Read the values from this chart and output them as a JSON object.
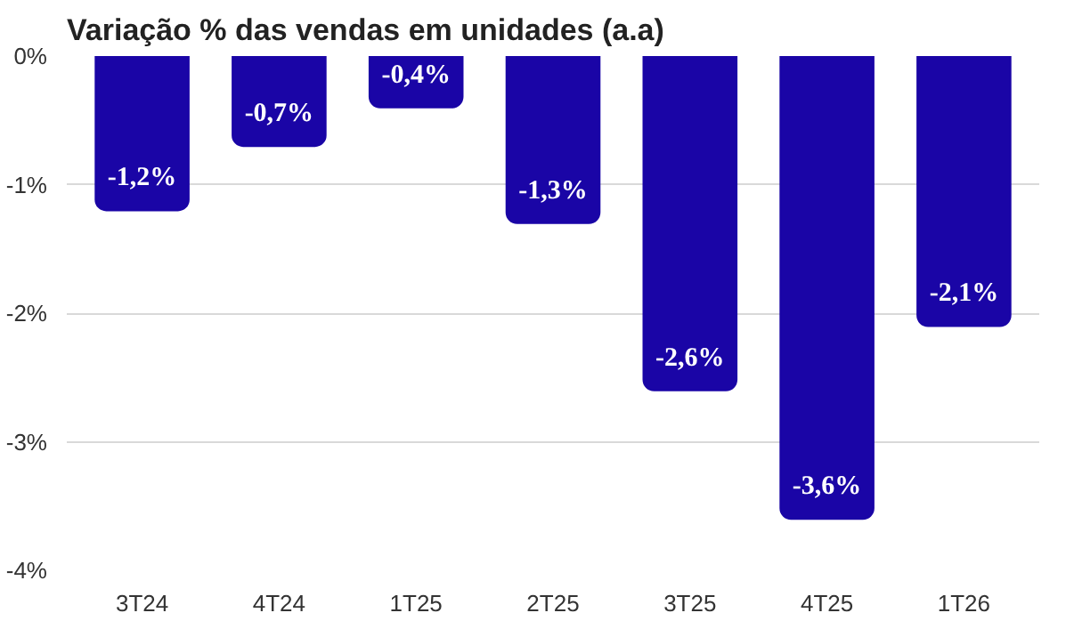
{
  "chart_data": {
    "type": "bar",
    "title": "Variação % das vendas em unidades (a.a)",
    "categories": [
      "3T24",
      "4T24",
      "1T25",
      "2T25",
      "3T25",
      "4T25",
      "1T26"
    ],
    "values": [
      -1.2,
      -0.7,
      -0.4,
      -1.3,
      -2.6,
      -3.6,
      -2.1
    ],
    "value_labels": [
      "-1,2%",
      "-0,7%",
      "-0,4%",
      "-1,3%",
      "-2,6%",
      "-3,6%",
      "-2,1%"
    ],
    "color": "#1a05a6",
    "ylim": [
      -4,
      0
    ],
    "yticks": [
      {
        "value": 0,
        "label": "0%"
      },
      {
        "value": -1,
        "label": "-1%"
      },
      {
        "value": -2,
        "label": "-2%"
      },
      {
        "value": -3,
        "label": "-3%"
      },
      {
        "value": -4,
        "label": "-4%"
      }
    ],
    "grid": "y"
  }
}
